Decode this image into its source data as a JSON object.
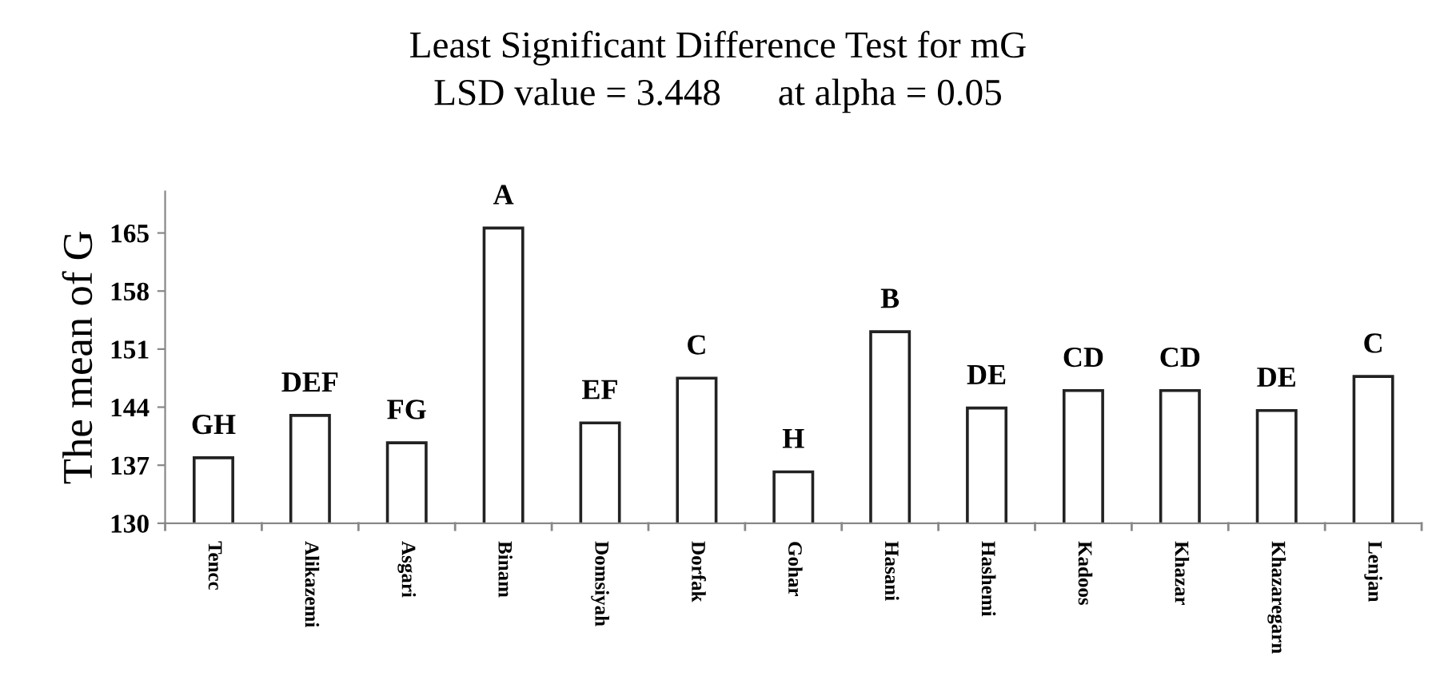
{
  "chart_data": {
    "type": "bar",
    "title": "Least Significant Difference Test for mG",
    "subtitle": "LSD value = 3.448      at alpha = 0.05",
    "ylabel": "The mean of G",
    "categories": [
      "Tencc",
      "Alikazemi",
      "Asgari",
      "Binam",
      "Domsiyah",
      "Dorfak",
      "Gohar",
      "Hasani",
      "Hashemi",
      "Kadoos",
      "Khazar",
      "Khazaregarn",
      "Lenjan"
    ],
    "values": [
      137.9,
      143.0,
      139.7,
      165.6,
      142.1,
      147.5,
      136.2,
      153.1,
      143.9,
      146.0,
      146.0,
      143.6,
      147.7
    ],
    "color": "#ffffff",
    "ylim": [
      130,
      170
    ],
    "yticks": [
      130,
      137,
      144,
      151,
      158,
      165
    ],
    "grid": false,
    "legend": false,
    "annotations": [
      {
        "text": "GH",
        "x": "Tencc",
        "y": 137.9
      },
      {
        "text": "DEF",
        "x": "Alikazemi",
        "y": 143.0
      },
      {
        "text": "FG",
        "x": "Asgari",
        "y": 139.7
      },
      {
        "text": "A",
        "x": "Binam",
        "y": 165.6
      },
      {
        "text": "EF",
        "x": "Domsiyah",
        "y": 142.1
      },
      {
        "text": "C",
        "x": "Dorfak",
        "y": 147.5
      },
      {
        "text": "H",
        "x": "Gohar",
        "y": 136.2
      },
      {
        "text": "B",
        "x": "Hasani",
        "y": 153.1
      },
      {
        "text": "DE",
        "x": "Hashemi",
        "y": 143.9
      },
      {
        "text": "CD",
        "x": "Kadoos",
        "y": 146.0
      },
      {
        "text": "CD",
        "x": "Khazar",
        "y": 146.0
      },
      {
        "text": "DE",
        "x": "Khazaregarn",
        "y": 143.6
      },
      {
        "text": "C",
        "x": "Lenjan",
        "y": 147.7
      }
    ]
  }
}
